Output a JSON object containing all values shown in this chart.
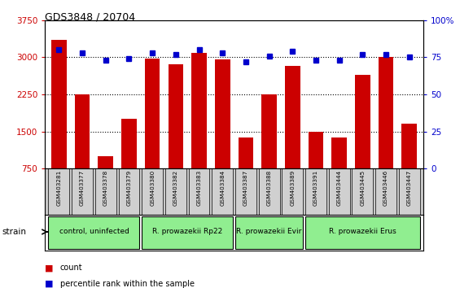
{
  "title": "GDS3848 / 20704",
  "samples": [
    "GSM403281",
    "GSM403377",
    "GSM403378",
    "GSM403379",
    "GSM403380",
    "GSM403382",
    "GSM403383",
    "GSM403384",
    "GSM403387",
    "GSM403388",
    "GSM403389",
    "GSM403391",
    "GSM403444",
    "GSM403445",
    "GSM403446",
    "GSM403447"
  ],
  "counts": [
    3350,
    2250,
    1000,
    1750,
    2980,
    2850,
    3080,
    2960,
    1380,
    2250,
    2820,
    1500,
    1380,
    2650,
    3000,
    1650
  ],
  "percentiles": [
    80,
    78,
    73,
    74,
    78,
    77,
    80,
    78,
    72,
    76,
    79,
    73,
    73,
    77,
    77,
    75
  ],
  "ylim_left": [
    750,
    3750
  ],
  "ylim_right": [
    0,
    100
  ],
  "yticks_left": [
    750,
    1500,
    2250,
    3000,
    3750
  ],
  "yticks_right": [
    0,
    25,
    50,
    75,
    100
  ],
  "groups": [
    {
      "label": "control, uninfected",
      "start": 0,
      "end": 4
    },
    {
      "label": "R. prowazekii Rp22",
      "start": 4,
      "end": 8
    },
    {
      "label": "R. prowazekii Evir",
      "start": 8,
      "end": 11
    },
    {
      "label": "R. prowazekii Erus",
      "start": 11,
      "end": 16
    }
  ],
  "group_color": "#90EE90",
  "bar_color": "#CC0000",
  "dot_color": "#0000CC",
  "left_tick_color": "#CC0000",
  "right_tick_color": "#0000CC",
  "grid_color": "#000000",
  "bg_xtick": "#C8C8C8",
  "strain_label": "strain"
}
